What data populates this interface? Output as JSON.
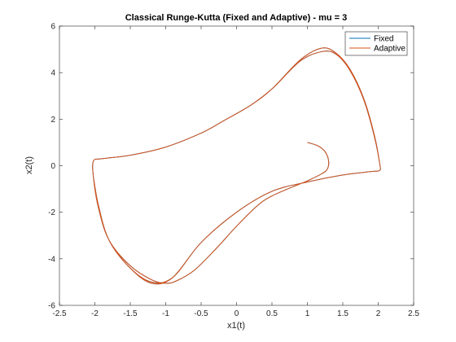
{
  "chart_data": {
    "type": "line",
    "title": "Classical Runge-Kutta (Fixed and Adaptive) - mu = 3",
    "xlabel": "x1(t)",
    "ylabel": "x2(t)",
    "xlim": [
      -2.5,
      2.5
    ],
    "ylim": [
      -6,
      6
    ],
    "xticks": [
      -2.5,
      -2,
      -1.5,
      -1,
      -0.5,
      0,
      0.5,
      1,
      1.5,
      2,
      2.5
    ],
    "yticks": [
      -6,
      -4,
      -2,
      0,
      2,
      4,
      6
    ],
    "xtick_labels": [
      "-2.5",
      "-2",
      "-1.5",
      "-1",
      "-0.5",
      "0",
      "0.5",
      "1",
      "1.5",
      "2",
      "2.5"
    ],
    "ytick_labels": [
      "-6",
      "-4",
      "-2",
      "0",
      "2",
      "4",
      "6"
    ],
    "grid": false,
    "legend_position": "top-right",
    "series": [
      {
        "name": "Fixed",
        "color": "#0072BD",
        "x": [
          1.0,
          1.15,
          1.25,
          1.3,
          1.28,
          1.2,
          1.0,
          0.8,
          0.5,
          0.3,
          0.0,
          -0.3,
          -0.6,
          -0.85,
          -1.0,
          -1.2,
          -1.5,
          -1.8,
          -1.95,
          -2.02,
          -2.02,
          -1.9,
          -1.5,
          -1.0,
          -0.5,
          -0.2,
          0.2,
          0.5,
          0.9,
          1.2,
          1.4,
          1.6,
          1.8,
          1.95,
          2.02,
          2.02,
          1.9,
          1.5,
          1.0,
          0.5,
          0.0,
          -0.5,
          -0.9,
          -1.2,
          -1.5,
          -1.8,
          -1.95,
          -2.02,
          -2.02,
          -1.9,
          -1.5,
          -1.0,
          -0.5,
          -0.2,
          0.2,
          0.5,
          0.9,
          1.2,
          1.4,
          1.6,
          1.8,
          1.95,
          2.02,
          2.02,
          1.9,
          1.5,
          1.0,
          0.5,
          0.0,
          -0.5,
          -0.9,
          -1.2,
          -1.5,
          -1.8,
          -1.95,
          -2.02
        ],
        "y": [
          1.0,
          0.85,
          0.6,
          0.2,
          -0.15,
          -0.35,
          -0.65,
          -0.9,
          -1.3,
          -1.7,
          -2.6,
          -3.6,
          -4.5,
          -4.95,
          -5.05,
          -4.9,
          -4.3,
          -3.2,
          -1.8,
          -0.5,
          0.2,
          0.3,
          0.45,
          0.8,
          1.4,
          1.9,
          2.6,
          3.3,
          4.5,
          4.9,
          4.8,
          4.1,
          2.8,
          1.2,
          0.1,
          -0.2,
          -0.25,
          -0.4,
          -0.7,
          -1.1,
          -2.0,
          -3.3,
          -4.8,
          -5.0,
          -4.4,
          -3.2,
          -1.7,
          -0.5,
          0.2,
          0.3,
          0.45,
          0.8,
          1.4,
          1.9,
          2.6,
          3.3,
          4.55,
          5.05,
          4.85,
          4.15,
          2.85,
          1.25,
          0.1,
          -0.2,
          -0.25,
          -0.4,
          -0.7,
          -1.1,
          -2.0,
          -3.3,
          -4.8,
          -5.05,
          -4.4,
          -3.2,
          -1.7,
          -0.5
        ]
      },
      {
        "name": "Adaptive",
        "color": "#D95319",
        "x": [
          1.0,
          1.15,
          1.25,
          1.3,
          1.28,
          1.2,
          1.0,
          0.8,
          0.5,
          0.3,
          0.0,
          -0.3,
          -0.6,
          -0.85,
          -1.0,
          -1.2,
          -1.5,
          -1.8,
          -1.95,
          -2.02,
          -2.02,
          -1.9,
          -1.5,
          -1.0,
          -0.5,
          -0.2,
          0.2,
          0.5,
          0.9,
          1.2,
          1.4,
          1.6,
          1.8,
          1.95,
          2.02,
          2.02,
          1.9,
          1.5,
          1.0,
          0.5,
          0.0,
          -0.5,
          -0.9,
          -1.2,
          -1.5,
          -1.8,
          -1.95,
          -2.02,
          -2.02,
          -1.9,
          -1.5,
          -1.0,
          -0.5,
          -0.2,
          0.2,
          0.5,
          0.9,
          1.2,
          1.4,
          1.6,
          1.8,
          1.95,
          2.02,
          2.02,
          1.9,
          1.5,
          1.0,
          0.5,
          0.0,
          -0.5,
          -0.9,
          -1.2,
          -1.5,
          -1.8,
          -1.95,
          -2.02
        ],
        "y": [
          1.0,
          0.85,
          0.6,
          0.2,
          -0.15,
          -0.35,
          -0.65,
          -0.9,
          -1.3,
          -1.7,
          -2.6,
          -3.6,
          -4.5,
          -4.95,
          -5.05,
          -4.9,
          -4.3,
          -3.2,
          -1.8,
          -0.5,
          0.2,
          0.3,
          0.45,
          0.8,
          1.4,
          1.9,
          2.6,
          3.3,
          4.5,
          4.9,
          4.8,
          4.1,
          2.8,
          1.2,
          0.1,
          -0.2,
          -0.25,
          -0.4,
          -0.7,
          -1.1,
          -2.0,
          -3.3,
          -4.8,
          -5.0,
          -4.4,
          -3.2,
          -1.7,
          -0.5,
          0.2,
          0.3,
          0.45,
          0.8,
          1.4,
          1.9,
          2.6,
          3.3,
          4.55,
          5.05,
          4.85,
          4.15,
          2.85,
          1.25,
          0.1,
          -0.2,
          -0.25,
          -0.4,
          -0.7,
          -1.1,
          -2.0,
          -3.3,
          -4.8,
          -5.05,
          -4.4,
          -3.2,
          -1.7,
          -0.5
        ]
      }
    ]
  }
}
